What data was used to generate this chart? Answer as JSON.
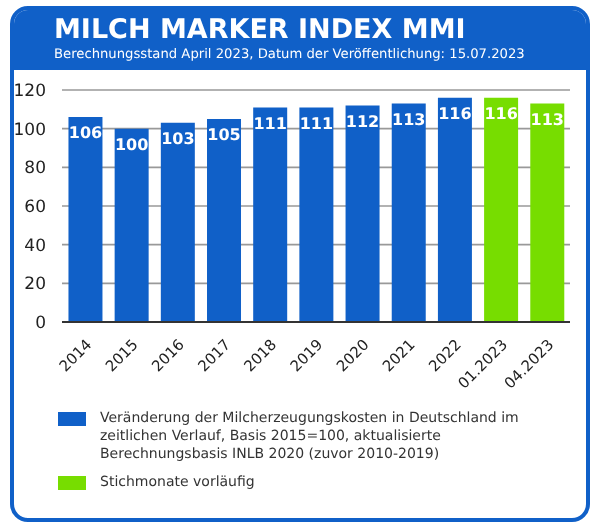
{
  "chart_data": {
    "type": "bar",
    "title": "MILCH MARKER INDEX MMI",
    "subtitle": "Berechnungsstand April 2023, Datum der Veröffentlichung: 15.07.2023",
    "categories": [
      "2014",
      "2015",
      "2016",
      "2017",
      "2018",
      "2019",
      "2020",
      "2021",
      "2022",
      "01.2023",
      "04.2023"
    ],
    "series": [
      {
        "name": "Veränderung der Milcherzeugungskosten in Deutschland im zeitlichen Verlauf, Basis 2015=100, aktualisierte Berechnungsbasis INLB 2020 (zuvor 2010-2019)",
        "color": "#1060c8",
        "values": [
          106,
          100,
          103,
          105,
          111,
          111,
          112,
          113,
          116,
          null,
          null
        ]
      },
      {
        "name": "Stichmonate vorläufig",
        "color": "#77dd00",
        "values": [
          null,
          null,
          null,
          null,
          null,
          null,
          null,
          null,
          null,
          116,
          113
        ]
      }
    ],
    "ylim": [
      0,
      120
    ],
    "yticks": [
      0,
      20,
      40,
      60,
      80,
      100,
      120
    ],
    "grid": "y",
    "data_labels": true,
    "legend": "bottom"
  }
}
